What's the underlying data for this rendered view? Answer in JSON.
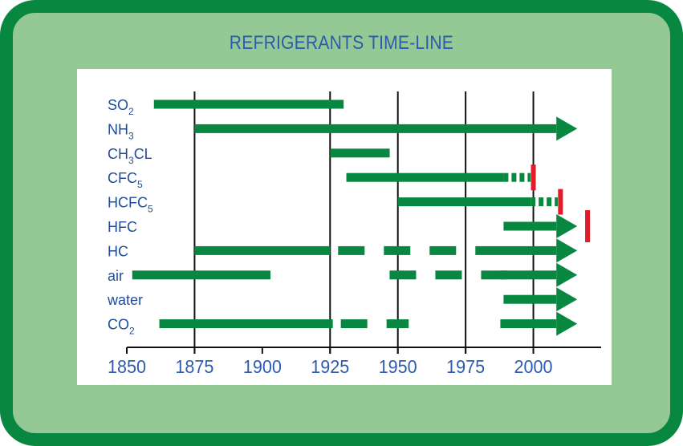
{
  "title": "REFRIGERANTS TIME-LINE",
  "colors": {
    "frame": "#07873f",
    "frame_fill": "#94c995",
    "bar": "#07873f",
    "phaseout": "#e11d2a",
    "text": "#2d5bb0"
  },
  "chart_data": {
    "type": "timeline",
    "title": "REFRIGERANTS TIME-LINE",
    "xlabel": "",
    "ylabel": "",
    "xlim": [
      1850,
      2025
    ],
    "x_ticks": [
      1850,
      1875,
      1900,
      1925,
      1950,
      1975,
      2000
    ],
    "x_tick_labels": [
      "1850",
      "1875",
      "1900",
      "1925",
      "1950",
      "1975",
      "2000"
    ],
    "gridlines": [
      1875,
      1925,
      1950,
      1975,
      2000
    ],
    "rows": [
      {
        "label": "SO",
        "sub": "2",
        "suffix": "",
        "solid": [
          [
            1860,
            1930
          ]
        ],
        "dashed": [],
        "arrow": false,
        "phaseout": null
      },
      {
        "label": "NH",
        "sub": "3",
        "suffix": "",
        "solid": [
          [
            1875,
            2015
          ]
        ],
        "dashed": [],
        "arrow": true,
        "phaseout": null
      },
      {
        "label": "CH",
        "sub": "3",
        "suffix": "CL",
        "solid": [
          [
            1925,
            1947
          ]
        ],
        "dashed": [],
        "arrow": false,
        "phaseout": null
      },
      {
        "label": "CFC",
        "sub": "5",
        "suffix": "",
        "solid": [
          [
            1931,
            1989
          ]
        ],
        "dashed": [
          [
            1989,
            1999
          ]
        ],
        "arrow": false,
        "phaseout": 2000
      },
      {
        "label": "HCFC",
        "sub": "5",
        "suffix": "",
        "solid": [
          [
            1950,
            1999
          ]
        ],
        "dashed": [
          [
            1999,
            2009
          ]
        ],
        "arrow": false,
        "phaseout": 2010
      },
      {
        "label": "HFC",
        "sub": "",
        "suffix": "",
        "solid": [
          [
            1989,
            2015
          ]
        ],
        "dashed": [],
        "arrow": true,
        "phaseout": 2020
      },
      {
        "label": "HC",
        "sub": "",
        "suffix": "",
        "solid": [
          [
            1875,
            1925
          ]
        ],
        "dashed": [
          [
            1925,
            1990
          ]
        ],
        "arrow": true,
        "phaseout": null
      },
      {
        "label": "air",
        "sub": "",
        "suffix": "",
        "solid": [
          [
            1852,
            1903
          ]
        ],
        "dashed": [
          [
            1944,
            1990
          ]
        ],
        "arrow": true,
        "phaseout": null
      },
      {
        "label": "water",
        "sub": "",
        "suffix": "",
        "solid": [
          [
            1989,
            2015
          ]
        ],
        "dashed": [],
        "arrow": true,
        "phaseout": null
      },
      {
        "label": "CO",
        "sub": "2",
        "suffix": "",
        "solid": [
          [
            1862,
            1926
          ]
        ],
        "dashed": [
          [
            1926,
            1954
          ]
        ],
        "arrow": true,
        "phaseout": null
      }
    ]
  }
}
